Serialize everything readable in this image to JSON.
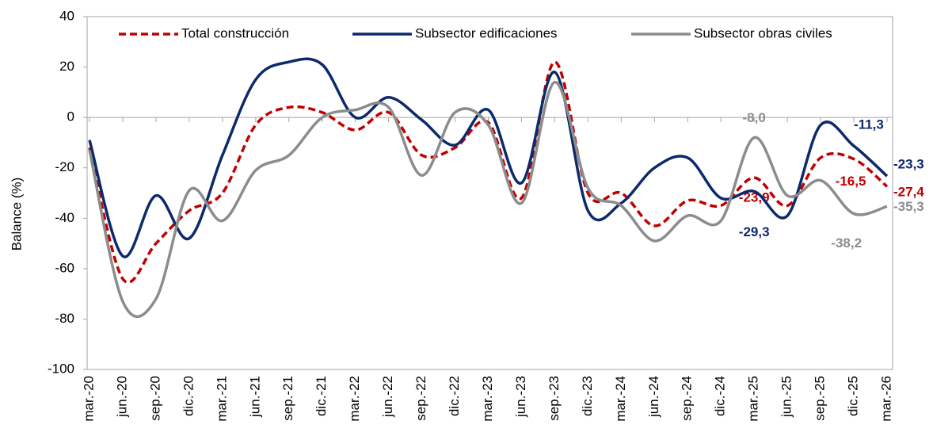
{
  "chart_data": {
    "type": "line",
    "y_label": "Balance (%)",
    "categories": [
      "mar.-20",
      "jun.-20",
      "sep.-20",
      "dic.-20",
      "mar.-21",
      "jun.-21",
      "sep.-21",
      "dic.-21",
      "mar.-22",
      "jun.-22",
      "sep.-22",
      "dic.-22",
      "mar.-23",
      "jun.-23",
      "sep.-23",
      "dic.-23",
      "mar.-24",
      "jun.-24",
      "sep.-24",
      "dic.-24",
      "mar.-25",
      "jun.-25",
      "sep.-25",
      "dic.-25",
      "mar.-26"
    ],
    "series": [
      {
        "name": "Total construcción",
        "color": "#c00000",
        "dash": true,
        "values": [
          -12,
          -64,
          -50,
          -37,
          -30,
          -3,
          4,
          2,
          -5,
          2,
          -15,
          -12,
          -2,
          -32,
          22,
          -30,
          -30,
          -43,
          -33,
          -35,
          -23.9,
          -35,
          -16,
          -16.5,
          -27.4
        ],
        "value_labels": [
          null,
          null,
          null,
          null,
          null,
          null,
          null,
          null,
          null,
          null,
          null,
          null,
          null,
          null,
          null,
          null,
          null,
          null,
          null,
          null,
          "-23,9",
          null,
          null,
          "-16,5",
          "-27,4"
        ]
      },
      {
        "name": "Subsector edificaciones",
        "color": "#0c2a6b",
        "dash": false,
        "values": [
          -9,
          -55,
          -31,
          -48,
          -15,
          15,
          22,
          21,
          0,
          8,
          -1,
          -11,
          3,
          -26,
          18,
          -37,
          -34,
          -20,
          -16,
          -32,
          -29.3,
          -39,
          -3,
          -11.3,
          -23.3
        ],
        "value_labels": [
          null,
          null,
          null,
          null,
          null,
          null,
          null,
          null,
          null,
          null,
          null,
          null,
          null,
          null,
          null,
          null,
          null,
          null,
          null,
          null,
          "-29,3",
          null,
          null,
          "-11,3",
          "-23,3"
        ]
      },
      {
        "name": "Subsector obras civiles",
        "color": "#8c8c8c",
        "dash": false,
        "values": [
          -13,
          -73,
          -72,
          -29,
          -41,
          -21,
          -15,
          0,
          3,
          4,
          -23,
          2,
          -3,
          -34,
          14,
          -28,
          -35,
          -49,
          -39,
          -41,
          -8.0,
          -31,
          -25,
          -38.2,
          -35.3
        ],
        "value_labels": [
          null,
          null,
          null,
          null,
          null,
          null,
          null,
          null,
          null,
          null,
          null,
          null,
          null,
          null,
          null,
          null,
          null,
          null,
          null,
          null,
          "-8,0",
          null,
          null,
          "-38,2",
          "-35,3"
        ]
      }
    ],
    "ylim": [
      -100,
      40
    ],
    "yticks": [
      -100,
      -80,
      -60,
      -40,
      -20,
      0,
      20,
      40
    ]
  }
}
